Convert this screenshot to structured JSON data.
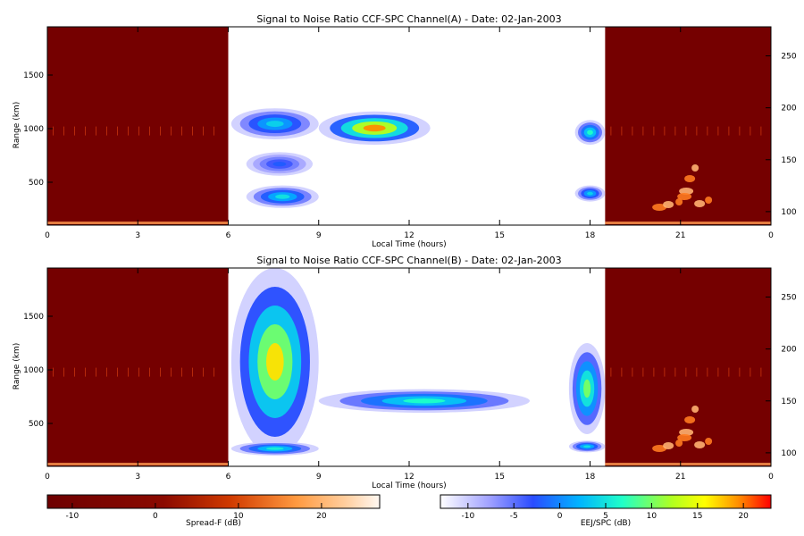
{
  "chart_data": [
    {
      "type": "heatmap",
      "title": "Signal to Noise Ratio CCF-SPC Channel(A) - Date: 02-Jan-2003",
      "xlabel": "Local Time (hours)",
      "ylabel": "Range (km)",
      "y2label": "",
      "xlim": [
        0,
        24
      ],
      "ylim": [
        100,
        1950
      ],
      "y2lim": [
        87,
        278
      ],
      "x_ticks": [
        "0",
        "3",
        "6",
        "9",
        "12",
        "15",
        "18",
        "21",
        "0"
      ],
      "y_ticks": [
        "500",
        "1000",
        "1500"
      ],
      "y2_ticks": [
        "100",
        "150",
        "200",
        "250"
      ],
      "spreadf_segments": [
        [
          0,
          6
        ],
        [
          18.5,
          24
        ]
      ],
      "eej_blobs": [
        {
          "x0": 6.1,
          "x1": 9.0,
          "y0": 900,
          "y1": 1190,
          "peak_db": 2
        },
        {
          "x0": 6.6,
          "x1": 8.8,
          "y0": 560,
          "y1": 780,
          "peak_db": -4
        },
        {
          "x0": 6.6,
          "x1": 9.0,
          "y0": 260,
          "y1": 470,
          "peak_db": 3
        },
        {
          "x0": 9.0,
          "x1": 12.7,
          "y0": 850,
          "y1": 1160,
          "peak_db": 17
        },
        {
          "x0": 17.5,
          "x1": 18.5,
          "y0": 850,
          "y1": 1080,
          "peak_db": 5
        },
        {
          "x0": 17.5,
          "x1": 18.5,
          "y0": 320,
          "y1": 470,
          "peak_db": 2
        }
      ]
    },
    {
      "type": "heatmap",
      "title": "Signal to Noise Ratio CCF-SPC Channel(B) - Date: 02-Jan-2003",
      "xlabel": "Local Time (hours)",
      "ylabel": "Range (km)",
      "y2label": "",
      "xlim": [
        0,
        24
      ],
      "ylim": [
        100,
        1950
      ],
      "y2lim": [
        87,
        278
      ],
      "x_ticks": [
        "0",
        "3",
        "6",
        "9",
        "12",
        "15",
        "18",
        "21",
        "0"
      ],
      "y_ticks": [
        "500",
        "1000",
        "1500"
      ],
      "y2_ticks": [
        "100",
        "150",
        "200",
        "250"
      ],
      "spreadf_segments": [
        [
          0,
          6
        ],
        [
          18.5,
          24
        ]
      ],
      "eej_blobs": [
        {
          "x0": 6.1,
          "x1": 9.0,
          "y0": 200,
          "y1": 1950,
          "peak_db": 14
        },
        {
          "x0": 6.1,
          "x1": 9.0,
          "y0": 200,
          "y1": 330,
          "peak_db": 4
        },
        {
          "x0": 9.0,
          "x1": 16.0,
          "y0": 600,
          "y1": 820,
          "peak_db": 5
        },
        {
          "x0": 17.3,
          "x1": 18.5,
          "y0": 400,
          "y1": 1250,
          "peak_db": 8
        },
        {
          "x0": 17.3,
          "x1": 18.5,
          "y0": 230,
          "y1": 340,
          "peak_db": 3
        }
      ]
    }
  ],
  "colorbars": [
    {
      "label": "Spread-F (dB)",
      "range": [
        -13,
        27
      ],
      "ticks": [
        "-10",
        "0",
        "10",
        "20"
      ]
    },
    {
      "label": "EEJ/SPC (dB)",
      "range": [
        -13,
        23
      ],
      "ticks": [
        "-10",
        "-5",
        "0",
        "5",
        "10",
        "15",
        "20"
      ]
    }
  ],
  "colors": {
    "spreadf_low": "#7a0000",
    "spreadf_high": "#fff4ee",
    "eej_low": "#ffffff",
    "eej_high": "#ff0000"
  }
}
